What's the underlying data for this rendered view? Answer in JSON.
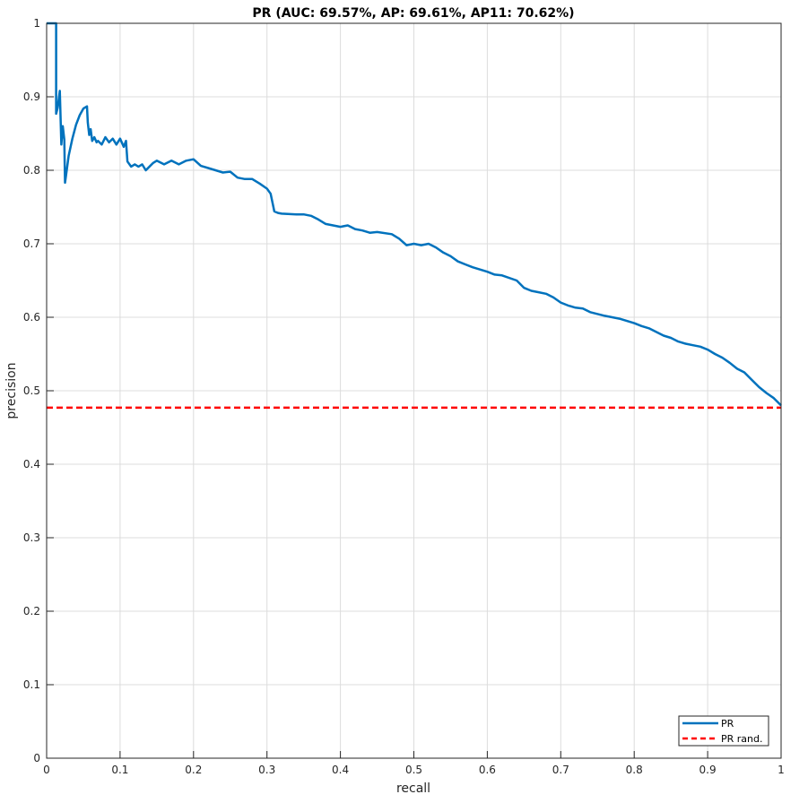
{
  "chart_data": {
    "type": "line",
    "title": "PR (AUC: 69.57%, AP: 69.61%, AP11: 70.62%)",
    "xlabel": "recall",
    "ylabel": "precision",
    "xlim": [
      0,
      1
    ],
    "ylim": [
      0,
      1
    ],
    "xticks": [
      "0",
      "0.1",
      "0.2",
      "0.3",
      "0.4",
      "0.5",
      "0.6",
      "0.7",
      "0.8",
      "0.9",
      "1"
    ],
    "yticks": [
      "0",
      "0.1",
      "0.2",
      "0.3",
      "0.4",
      "0.5",
      "0.6",
      "0.7",
      "0.8",
      "0.9",
      "1"
    ],
    "grid": true,
    "legend_position": "bottom-right",
    "series": [
      {
        "name": "PR",
        "color": "#0072bd",
        "style": "solid",
        "x": [
          0,
          0.013,
          0.013,
          0.015,
          0.018,
          0.02,
          0.022,
          0.024,
          0.025,
          0.026,
          0.03,
          0.035,
          0.04,
          0.045,
          0.05,
          0.055,
          0.056,
          0.058,
          0.06,
          0.062,
          0.065,
          0.068,
          0.07,
          0.075,
          0.08,
          0.085,
          0.09,
          0.095,
          0.1,
          0.105,
          0.108,
          0.11,
          0.115,
          0.12,
          0.125,
          0.13,
          0.135,
          0.14,
          0.145,
          0.15,
          0.16,
          0.17,
          0.18,
          0.19,
          0.2,
          0.21,
          0.22,
          0.23,
          0.24,
          0.25,
          0.26,
          0.27,
          0.28,
          0.29,
          0.3,
          0.305,
          0.31,
          0.315,
          0.32,
          0.34,
          0.35,
          0.36,
          0.37,
          0.38,
          0.4,
          0.41,
          0.42,
          0.43,
          0.44,
          0.45,
          0.47,
          0.48,
          0.49,
          0.5,
          0.51,
          0.52,
          0.53,
          0.54,
          0.55,
          0.56,
          0.57,
          0.58,
          0.59,
          0.6,
          0.61,
          0.62,
          0.64,
          0.65,
          0.66,
          0.67,
          0.68,
          0.69,
          0.7,
          0.71,
          0.72,
          0.73,
          0.74,
          0.76,
          0.78,
          0.8,
          0.81,
          0.82,
          0.83,
          0.84,
          0.85,
          0.86,
          0.87,
          0.88,
          0.89,
          0.9,
          0.91,
          0.92,
          0.93,
          0.94,
          0.95,
          0.96,
          0.97,
          0.98,
          0.99,
          1.0
        ],
        "y": [
          1.0,
          1.0,
          0.877,
          0.885,
          0.908,
          0.835,
          0.86,
          0.842,
          0.783,
          0.79,
          0.82,
          0.843,
          0.862,
          0.875,
          0.884,
          0.887,
          0.865,
          0.848,
          0.856,
          0.84,
          0.845,
          0.838,
          0.84,
          0.835,
          0.845,
          0.838,
          0.843,
          0.835,
          0.843,
          0.832,
          0.84,
          0.812,
          0.805,
          0.808,
          0.805,
          0.808,
          0.8,
          0.805,
          0.81,
          0.813,
          0.808,
          0.813,
          0.808,
          0.813,
          0.815,
          0.806,
          0.803,
          0.8,
          0.797,
          0.798,
          0.79,
          0.788,
          0.788,
          0.782,
          0.775,
          0.768,
          0.744,
          0.742,
          0.741,
          0.74,
          0.74,
          0.738,
          0.733,
          0.727,
          0.723,
          0.725,
          0.72,
          0.718,
          0.715,
          0.716,
          0.713,
          0.707,
          0.698,
          0.7,
          0.698,
          0.7,
          0.695,
          0.688,
          0.683,
          0.676,
          0.672,
          0.668,
          0.665,
          0.662,
          0.658,
          0.657,
          0.65,
          0.64,
          0.636,
          0.634,
          0.632,
          0.627,
          0.62,
          0.616,
          0.613,
          0.612,
          0.607,
          0.602,
          0.598,
          0.592,
          0.588,
          0.585,
          0.58,
          0.575,
          0.572,
          0.567,
          0.564,
          0.562,
          0.56,
          0.556,
          0.55,
          0.545,
          0.538,
          0.53,
          0.525,
          0.515,
          0.505,
          0.497,
          0.49,
          0.48
        ]
      },
      {
        "name": "PR rand.",
        "color": "#ff0000",
        "style": "dashed",
        "x": [
          0,
          1
        ],
        "y": [
          0.477,
          0.477
        ]
      }
    ]
  }
}
